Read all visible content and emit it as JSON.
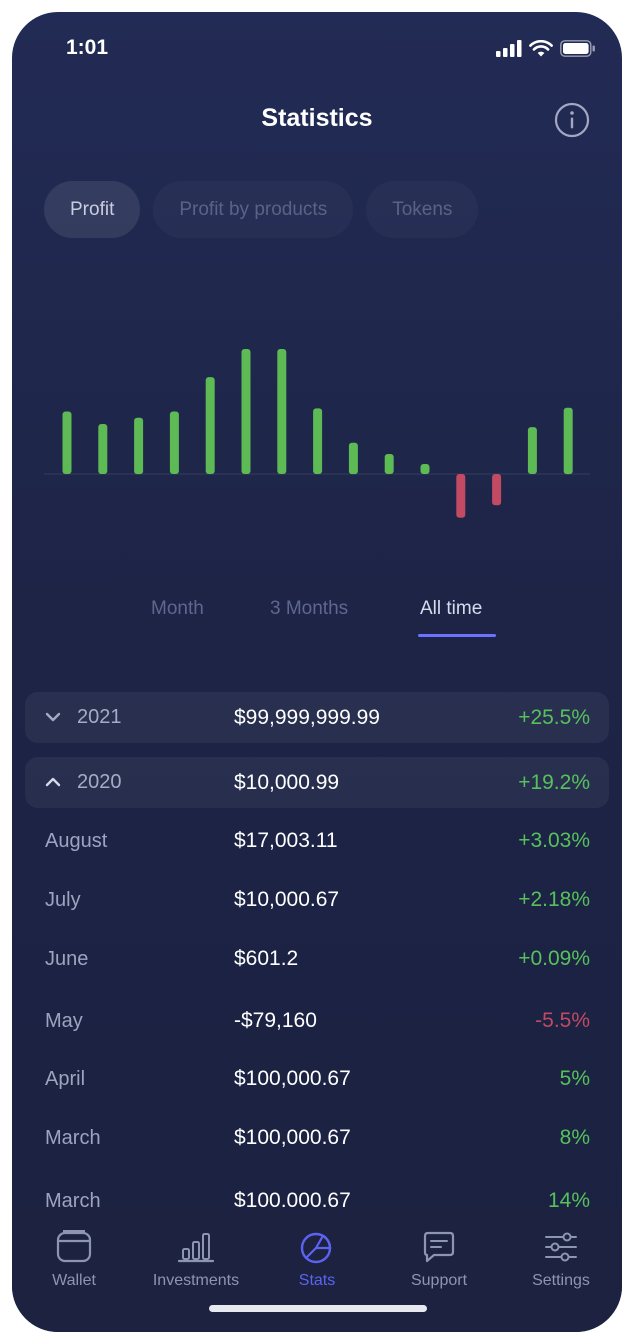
{
  "status": {
    "time": "1:01"
  },
  "header": {
    "title": "Statistics",
    "info_icon": "info-circle-icon"
  },
  "tabs": [
    {
      "label": "Profit",
      "active": true
    },
    {
      "label": "Profit by products",
      "active": false
    },
    {
      "label": "Tokens",
      "active": false
    }
  ],
  "chart_data": {
    "type": "bar",
    "values": [
      10,
      8,
      9,
      10,
      15.5,
      20,
      20,
      10.5,
      5,
      3.2,
      1.6,
      -7,
      -5,
      7.5,
      10.6
    ],
    "colors": {
      "positive": "#5dba55",
      "negative": "#c24a62",
      "baseline": "#343c5e"
    }
  },
  "periods": [
    {
      "label": "Month",
      "active": false
    },
    {
      "label": "3 Months",
      "active": false
    },
    {
      "label": "All time",
      "active": true
    }
  ],
  "years": [
    {
      "year": "2021",
      "amount": "$99,999,999.99",
      "change": "+25.5%",
      "expanded": false
    },
    {
      "year": "2020",
      "amount": "$10,000.99",
      "change": "+19.2%",
      "expanded": true
    }
  ],
  "months": [
    {
      "month": "August",
      "amount": "$17,003.11",
      "change": "+3.03%",
      "positive": true
    },
    {
      "month": "July",
      "amount": "$10,000.67",
      "change": "+2.18%",
      "positive": true
    },
    {
      "month": "June",
      "amount": "$601.2",
      "change": "+0.09%",
      "positive": true
    },
    {
      "month": "May",
      "amount": "-$79,160",
      "change": "-5.5%",
      "positive": false
    },
    {
      "month": "April",
      "amount": "$100,000.67",
      "change": "5%",
      "positive": true
    },
    {
      "month": "March",
      "amount": "$100,000.67",
      "change": "8%",
      "positive": true
    },
    {
      "month": "March",
      "amount": "$100,000.67",
      "change": "14%",
      "positive": true
    }
  ],
  "nav": [
    {
      "label": "Wallet",
      "icon": "wallet-icon",
      "active": false
    },
    {
      "label": "Investments",
      "icon": "investments-chart-icon",
      "active": false
    },
    {
      "label": "Stats",
      "icon": "stats-pie-icon",
      "active": true
    },
    {
      "label": "Support",
      "icon": "support-chat-icon",
      "active": false
    },
    {
      "label": "Settings",
      "icon": "settings-sliders-icon",
      "active": false
    }
  ]
}
